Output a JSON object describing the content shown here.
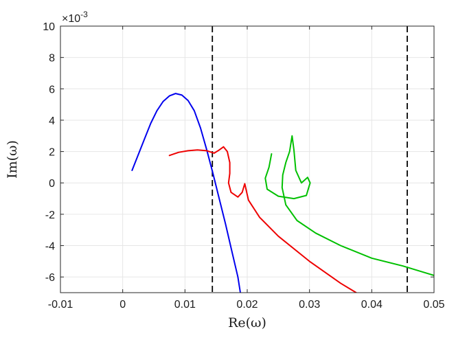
{
  "chart_data": {
    "type": "line",
    "xlabel": "Re(ω)",
    "ylabel": "Im(ω)",
    "y_scale_label": "×10",
    "y_scale_exponent": "-3",
    "xlim": [
      -0.01,
      0.05
    ],
    "ylim": [
      -7,
      10
    ],
    "x_ticks": [
      -0.01,
      0,
      0.01,
      0.02,
      0.03,
      0.04,
      0.05
    ],
    "x_tick_labels": [
      "-0.01",
      "0",
      "0.01",
      "0.02",
      "0.03",
      "0.04",
      "0.05"
    ],
    "y_ticks": [
      -6,
      -4,
      -2,
      0,
      2,
      4,
      6,
      8,
      10
    ],
    "y_tick_labels": [
      "-6",
      "-4",
      "-2",
      "0",
      "2",
      "4",
      "6",
      "8",
      "10"
    ],
    "grid": true,
    "vertical_lines": [
      {
        "x": 0.0144,
        "style": "dashed",
        "color": "#000000"
      },
      {
        "x": 0.0457,
        "style": "dashed",
        "color": "#000000"
      }
    ],
    "series": [
      {
        "color": "#0000ee",
        "points": [
          [
            0.0015,
            0.8
          ],
          [
            0.0025,
            1.8
          ],
          [
            0.0035,
            2.8
          ],
          [
            0.0045,
            3.8
          ],
          [
            0.0055,
            4.6
          ],
          [
            0.0065,
            5.2
          ],
          [
            0.0075,
            5.55
          ],
          [
            0.0085,
            5.7
          ],
          [
            0.0095,
            5.6
          ],
          [
            0.0105,
            5.25
          ],
          [
            0.0115,
            4.6
          ],
          [
            0.0125,
            3.5
          ],
          [
            0.0135,
            2.1
          ],
          [
            0.0145,
            0.6
          ],
          [
            0.0155,
            -1.0
          ],
          [
            0.0165,
            -2.6
          ],
          [
            0.0175,
            -4.3
          ],
          [
            0.0185,
            -6.0
          ],
          [
            0.0189,
            -7.0
          ]
        ]
      },
      {
        "color": "#ee0000",
        "points": [
          [
            0.0075,
            1.75
          ],
          [
            0.009,
            1.95
          ],
          [
            0.0105,
            2.05
          ],
          [
            0.012,
            2.1
          ],
          [
            0.0135,
            2.05
          ],
          [
            0.0147,
            1.9
          ],
          [
            0.0155,
            2.1
          ],
          [
            0.0162,
            2.3
          ],
          [
            0.0168,
            2.0
          ],
          [
            0.0172,
            1.3
          ],
          [
            0.0172,
            0.6
          ],
          [
            0.017,
            0.0
          ],
          [
            0.0174,
            -0.6
          ],
          [
            0.0185,
            -0.9
          ],
          [
            0.0192,
            -0.6
          ],
          [
            0.0196,
            -0.05
          ],
          [
            0.0198,
            -0.4
          ],
          [
            0.0202,
            -1.1
          ],
          [
            0.022,
            -2.2
          ],
          [
            0.025,
            -3.4
          ],
          [
            0.03,
            -5.0
          ],
          [
            0.035,
            -6.4
          ],
          [
            0.0375,
            -7.0
          ]
        ]
      },
      {
        "color": "#00c000",
        "points": [
          [
            0.0239,
            1.85
          ],
          [
            0.0235,
            1.0
          ],
          [
            0.0229,
            0.3
          ],
          [
            0.0232,
            -0.4
          ],
          [
            0.025,
            -0.85
          ],
          [
            0.0275,
            -1.0
          ],
          [
            0.0295,
            -0.8
          ],
          [
            0.0301,
            0.0
          ],
          [
            0.0297,
            0.35
          ],
          [
            0.0287,
            0.0
          ],
          [
            0.0278,
            0.8
          ],
          [
            0.0275,
            2.1
          ],
          [
            0.0272,
            3.0
          ],
          [
            0.0268,
            2.0
          ],
          [
            0.0262,
            1.3
          ],
          [
            0.0257,
            0.5
          ],
          [
            0.0256,
            -0.3
          ],
          [
            0.0262,
            -1.4
          ],
          [
            0.028,
            -2.4
          ],
          [
            0.031,
            -3.2
          ],
          [
            0.035,
            -4.0
          ],
          [
            0.04,
            -4.8
          ],
          [
            0.045,
            -5.3
          ],
          [
            0.05,
            -5.9
          ]
        ]
      }
    ]
  }
}
